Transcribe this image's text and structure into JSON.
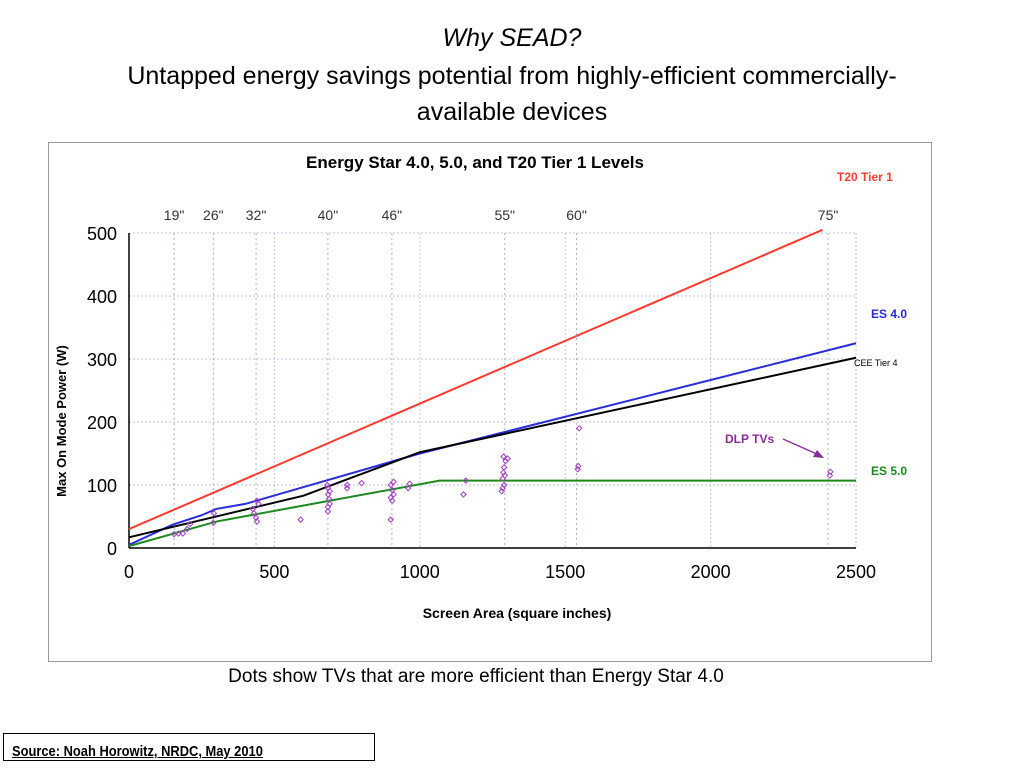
{
  "slide": {
    "title_line1": "Why SEAD?",
    "title_line2": "Untapped energy savings potential from highly-efficient commercially-",
    "title_line3": "available devices",
    "caption": "Dots show TVs that are more efficient than Energy Star 4.0",
    "source": "Source: Noah Horowitz, NRDC,  May 2010"
  },
  "chart_data": {
    "type": "line",
    "title": "Energy Star 4.0, 5.0, and T20 Tier 1 Levels",
    "xlabel": "Screen Area (square inches)",
    "ylabel": "Max On Mode Power (W)",
    "xlim": [
      0,
      2500
    ],
    "ylim": [
      0,
      500
    ],
    "x_ticks": [
      0,
      500,
      1000,
      1500,
      2000,
      2500
    ],
    "y_ticks": [
      0,
      100,
      200,
      300,
      400,
      500
    ],
    "grid": true,
    "screen_size_markers": [
      {
        "label": "19\"",
        "x": 155
      },
      {
        "label": "26\"",
        "x": 290
      },
      {
        "label": "32\"",
        "x": 437
      },
      {
        "label": "40\"",
        "x": 684
      },
      {
        "label": "46\"",
        "x": 904
      },
      {
        "label": "55\"",
        "x": 1292
      },
      {
        "label": "60\"",
        "x": 1539
      },
      {
        "label": "75\"",
        "x": 2404
      }
    ],
    "series": [
      {
        "name": "T20 Tier 1",
        "color": "#ff3b30",
        "x": [
          0,
          2385
        ],
        "y": [
          30,
          505
        ]
      },
      {
        "name": "ES 4.0",
        "color": "#2b2bd9",
        "x": [
          0,
          150,
          250,
          300,
          400,
          1000,
          2500
        ],
        "y": [
          5,
          37,
          52,
          62,
          70,
          150,
          325
        ]
      },
      {
        "name": "CEE Tier 4",
        "color": "#000000",
        "x": [
          0,
          600,
          1000,
          2500
        ],
        "y": [
          17,
          83,
          152,
          302
        ]
      },
      {
        "name": "ES 5.0",
        "color": "#1e8a1e",
        "x": [
          0,
          300,
          1068,
          2500
        ],
        "y": [
          3,
          42,
          107,
          107
        ]
      }
    ],
    "scatter": {
      "color": "#a040c0",
      "points": [
        [
          155,
          22
        ],
        [
          170,
          23
        ],
        [
          185,
          23
        ],
        [
          200,
          30
        ],
        [
          210,
          38
        ],
        [
          290,
          40
        ],
        [
          292,
          55
        ],
        [
          425,
          62
        ],
        [
          430,
          55
        ],
        [
          437,
          48
        ],
        [
          440,
          42
        ],
        [
          445,
          70
        ],
        [
          440,
          75
        ],
        [
          590,
          45
        ],
        [
          684,
          65
        ],
        [
          684,
          58
        ],
        [
          690,
          70
        ],
        [
          688,
          78
        ],
        [
          685,
          85
        ],
        [
          690,
          90
        ],
        [
          684,
          95
        ],
        [
          682,
          100
        ],
        [
          750,
          95
        ],
        [
          750,
          100
        ],
        [
          800,
          103
        ],
        [
          900,
          45
        ],
        [
          905,
          75
        ],
        [
          900,
          80
        ],
        [
          910,
          85
        ],
        [
          905,
          92
        ],
        [
          900,
          100
        ],
        [
          910,
          105
        ],
        [
          960,
          95
        ],
        [
          965,
          102
        ],
        [
          1150,
          85
        ],
        [
          1158,
          107
        ],
        [
          1282,
          90
        ],
        [
          1285,
          95
        ],
        [
          1290,
          100
        ],
        [
          1285,
          110
        ],
        [
          1292,
          115
        ],
        [
          1287,
          120
        ],
        [
          1290,
          128
        ],
        [
          1295,
          138
        ],
        [
          1288,
          145
        ],
        [
          1302,
          142
        ],
        [
          1543,
          125
        ],
        [
          1545,
          130
        ],
        [
          1548,
          190
        ],
        [
          2410,
          115
        ],
        [
          2412,
          121
        ]
      ]
    },
    "annotations": [
      {
        "text": "T20 Tier 1",
        "color": "#ff3b30"
      },
      {
        "text": "ES 4.0",
        "color": "#2b2bd9"
      },
      {
        "text": "CEE Tier 4",
        "color": "#000000"
      },
      {
        "text": "DLP TVs",
        "color": "#8a2b9b"
      },
      {
        "text": "ES 5.0",
        "color": "#1e8a1e"
      }
    ]
  }
}
